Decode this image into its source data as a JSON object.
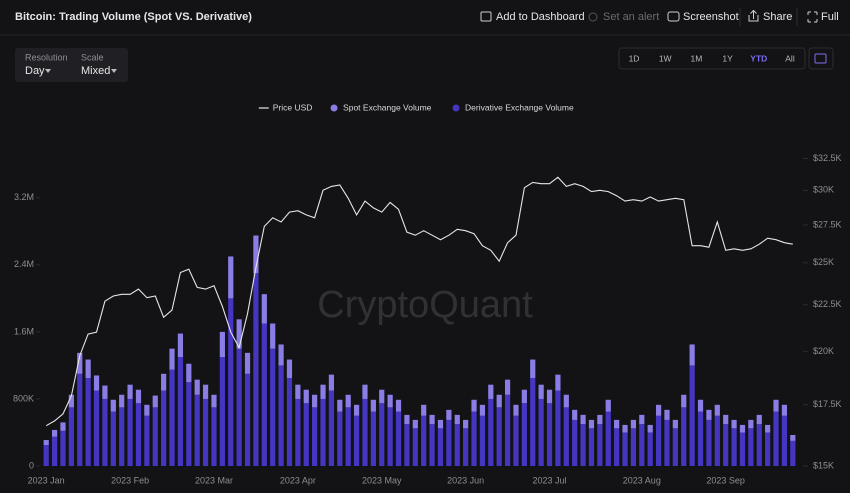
{
  "ui": {
    "title": "Bitcoin: Trading Volume (Spot VS. Derivative)",
    "toolbar": [
      "Add to Dashboard",
      "Set an alert",
      "Screenshot",
      "Share",
      "Full"
    ],
    "controls": [
      {
        "label": "Resolution",
        "value": "Day"
      },
      {
        "label": "Scale",
        "value": "Mixed"
      }
    ],
    "ranges": [
      "1D",
      "1W",
      "1M",
      "1Y",
      "YTD",
      "All"
    ],
    "active_range": "YTD",
    "watermark": "CryptoQuant"
  },
  "chart_data": {
    "type": "combo",
    "categories": [
      "2023 Jan",
      null,
      null,
      null,
      null,
      null,
      null,
      null,
      null,
      null,
      "2023 Feb",
      null,
      null,
      null,
      null,
      null,
      null,
      null,
      null,
      null,
      "2023 Mar",
      null,
      null,
      null,
      null,
      null,
      null,
      null,
      null,
      null,
      "2023 Apr",
      null,
      null,
      null,
      null,
      null,
      null,
      null,
      null,
      null,
      "2023 May",
      null,
      null,
      null,
      null,
      null,
      null,
      null,
      null,
      null,
      "2023 Jun",
      null,
      null,
      null,
      null,
      null,
      null,
      null,
      null,
      null,
      "2023 Jul",
      null,
      null,
      null,
      null,
      null,
      null,
      null,
      null,
      null,
      null,
      "2023 Aug",
      null,
      null,
      null,
      null,
      null,
      null,
      null,
      null,
      null,
      "2023 Sep",
      null,
      null,
      null,
      null,
      null,
      null,
      null,
      null
    ],
    "series": [
      {
        "name": "Price USD",
        "type": "line",
        "axis": "y2",
        "color": "#e6e6e6",
        "values": [
          16600,
          16800,
          17100,
          17900,
          19800,
          20900,
          21000,
          22700,
          23000,
          23100,
          23100,
          23400,
          22900,
          23000,
          21800,
          22200,
          24400,
          24600,
          23500,
          23400,
          23600,
          22400,
          21000,
          20200,
          22000,
          24700,
          27400,
          28000,
          27700,
          28400,
          28500,
          28200,
          28000,
          30000,
          30300,
          30400,
          29400,
          28200,
          29200,
          28700,
          28400,
          29100,
          28600,
          27000,
          26800,
          27100,
          26800,
          26500,
          26800,
          27200,
          27100,
          26900,
          26100,
          25800,
          25100,
          26300,
          26800,
          30200,
          30600,
          30500,
          30500,
          31000,
          30300,
          30500,
          30300,
          29900,
          30000,
          29900,
          29600,
          29200,
          29300,
          29200,
          29500,
          29200,
          29300,
          29400,
          29300,
          26100,
          26100,
          26000,
          27700,
          25800,
          25900,
          25800,
          25900,
          26200,
          26600,
          26500,
          26300,
          26200
        ]
      },
      {
        "name": "Spot Exchange Volume",
        "type": "bar",
        "color": "#8a7ee6",
        "values": [
          60000,
          80000,
          100000,
          150000,
          250000,
          220000,
          180000,
          160000,
          140000,
          150000,
          170000,
          160000,
          130000,
          140000,
          200000,
          250000,
          280000,
          220000,
          180000,
          170000,
          150000,
          300000,
          500000,
          350000,
          250000,
          450000,
          350000,
          300000,
          250000,
          220000,
          170000,
          160000,
          150000,
          170000,
          190000,
          140000,
          150000,
          130000,
          170000,
          140000,
          160000,
          150000,
          140000,
          110000,
          100000,
          130000,
          110000,
          100000,
          120000,
          110000,
          100000,
          140000,
          130000,
          170000,
          150000,
          180000,
          130000,
          160000,
          220000,
          170000,
          160000,
          190000,
          150000,
          120000,
          110000,
          100000,
          110000,
          140000,
          100000,
          90000,
          100000,
          110000,
          90000,
          130000,
          120000,
          100000,
          150000,
          250000,
          140000,
          120000,
          130000,
          110000,
          100000,
          90000,
          100000,
          110000,
          90000,
          140000,
          130000,
          70000
        ]
      },
      {
        "name": "Derivative Exchange Volume",
        "type": "bar",
        "color": "#4536c2",
        "values": [
          250000,
          350000,
          420000,
          700000,
          1100000,
          1050000,
          900000,
          800000,
          650000,
          700000,
          800000,
          750000,
          600000,
          700000,
          900000,
          1150000,
          1300000,
          1000000,
          850000,
          800000,
          700000,
          1300000,
          2000000,
          1400000,
          1100000,
          2300000,
          1700000,
          1400000,
          1200000,
          1050000,
          800000,
          750000,
          700000,
          800000,
          900000,
          650000,
          700000,
          600000,
          800000,
          650000,
          750000,
          700000,
          650000,
          500000,
          450000,
          600000,
          500000,
          450000,
          550000,
          500000,
          450000,
          650000,
          600000,
          800000,
          700000,
          850000,
          600000,
          750000,
          1050000,
          800000,
          750000,
          900000,
          700000,
          550000,
          500000,
          450000,
          500000,
          650000,
          450000,
          400000,
          450000,
          500000,
          400000,
          600000,
          550000,
          450000,
          700000,
          1200000,
          650000,
          550000,
          600000,
          500000,
          450000,
          400000,
          450000,
          500000,
          400000,
          650000,
          600000,
          300000
        ]
      }
    ],
    "stacked": true,
    "ylim": [
      0,
      3770000
    ],
    "yticks": [
      {
        "value": 0,
        "label": "0"
      },
      {
        "value": 800000,
        "label": "800K"
      },
      {
        "value": 1600000,
        "label": "1.6M"
      },
      {
        "value": 2400000,
        "label": "2.4M"
      },
      {
        "value": 3200000,
        "label": "3.2M"
      }
    ],
    "y2lim": [
      15000,
      33200
    ],
    "y2log": true,
    "y2ticks": [
      {
        "value": 15000,
        "label": "$15K"
      },
      {
        "value": 17500,
        "label": "$17.5K"
      },
      {
        "value": 20000,
        "label": "$20K"
      },
      {
        "value": 22500,
        "label": "$22.5K"
      },
      {
        "value": 25000,
        "label": "$25K"
      },
      {
        "value": 27500,
        "label": "$27.5K"
      },
      {
        "value": 30000,
        "label": "$30K"
      },
      {
        "value": 32500,
        "label": "$32.5K"
      }
    ],
    "grid": false
  }
}
